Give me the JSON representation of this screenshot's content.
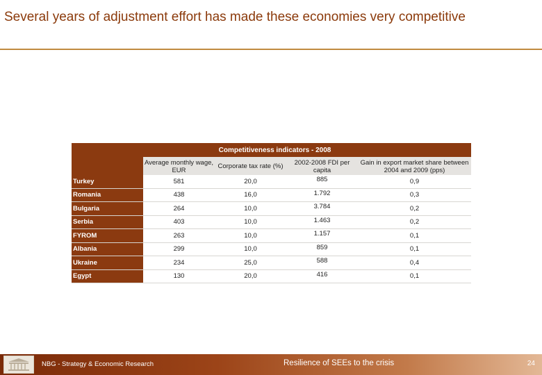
{
  "slide": {
    "title": "Several years of adjustment effort has made these economies very competitive"
  },
  "table": {
    "title": "Competitiveness indicators - 2008",
    "columns": [
      "Average monthly wage, EUR",
      "Corporate tax rate (%)",
      "2002-2008 FDI per capita",
      "Gain in export market share between 2004 and 2009 (pps)"
    ],
    "rows": [
      {
        "country": "Turkey",
        "wage": "581",
        "tax": "20,0",
        "fdi": "885",
        "gain": "0,9"
      },
      {
        "country": "Romania",
        "wage": "438",
        "tax": "16,0",
        "fdi": "1.792",
        "gain": "0,3"
      },
      {
        "country": "Bulgaria",
        "wage": "264",
        "tax": "10,0",
        "fdi": "3.784",
        "gain": "0,2"
      },
      {
        "country": "Serbia",
        "wage": "403",
        "tax": "10,0",
        "fdi": "1.463",
        "gain": "0,2"
      },
      {
        "country": "FYROM",
        "wage": "263",
        "tax": "10,0",
        "fdi": "1.157",
        "gain": "0,1"
      },
      {
        "country": "Albania",
        "wage": "299",
        "tax": "10,0",
        "fdi": "859",
        "gain": "0,1"
      },
      {
        "country": "Ukraine",
        "wage": "234",
        "tax": "25,0",
        "fdi": "588",
        "gain": "0,4"
      },
      {
        "country": "Egypt",
        "wage": "130",
        "tax": "20,0",
        "fdi": "416",
        "gain": "0,1"
      }
    ]
  },
  "footer": {
    "left_text": "NBG - Strategy & Economic Research",
    "center_text": "Resilience of SEEs to the crisis",
    "page_number": "24",
    "logo_icon": "bank-building-icon"
  },
  "colors": {
    "accent": "#8b3a10",
    "title": "#8b3a0b",
    "rule": "#c08a3e"
  }
}
